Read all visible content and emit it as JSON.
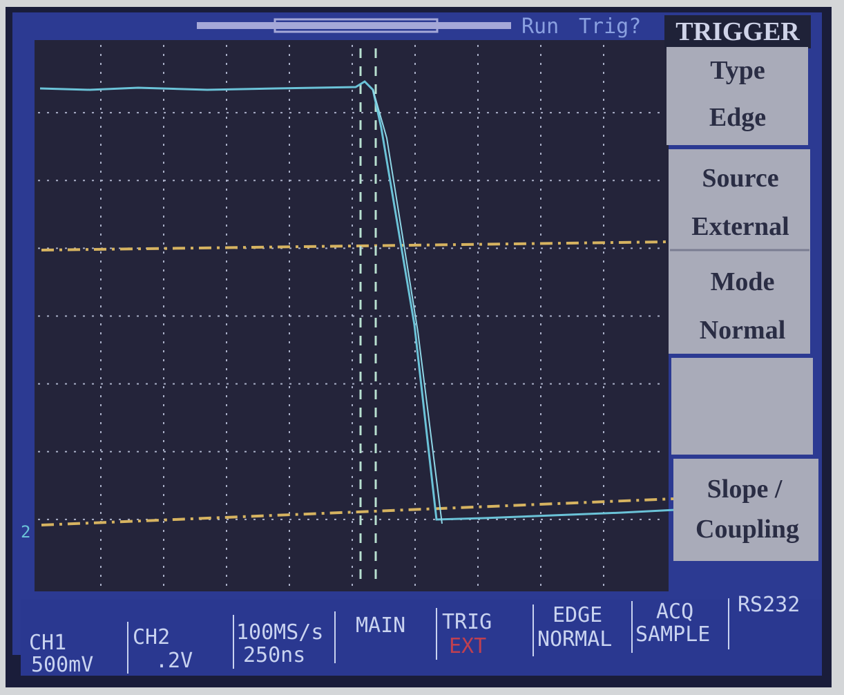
{
  "status": {
    "state": "Run",
    "trigger": "Trig?"
  },
  "channel_marker": "2",
  "menu": {
    "title": "TRIGGER",
    "items": [
      {
        "label": "Type",
        "value": "Edge"
      },
      {
        "label": "Source",
        "value": "External"
      },
      {
        "label": "Mode",
        "value": "Normal"
      },
      {
        "label": "Slope /",
        "value": "Coupling"
      }
    ]
  },
  "footer": {
    "channels": [
      {
        "name": "CH1",
        "scale": "500mV"
      },
      {
        "name": "CH2",
        "scale": ".2V"
      }
    ],
    "timebase": {
      "rate": "100MS/s",
      "division": "250ns"
    },
    "view": "MAIN",
    "trigger": {
      "label": "TRIG",
      "source": "EXT"
    },
    "edge": {
      "type": "EDGE",
      "mode": "NORMAL"
    },
    "acquire": {
      "label": "ACQ",
      "mode": "SAMPLE"
    },
    "port": "RS232"
  }
}
